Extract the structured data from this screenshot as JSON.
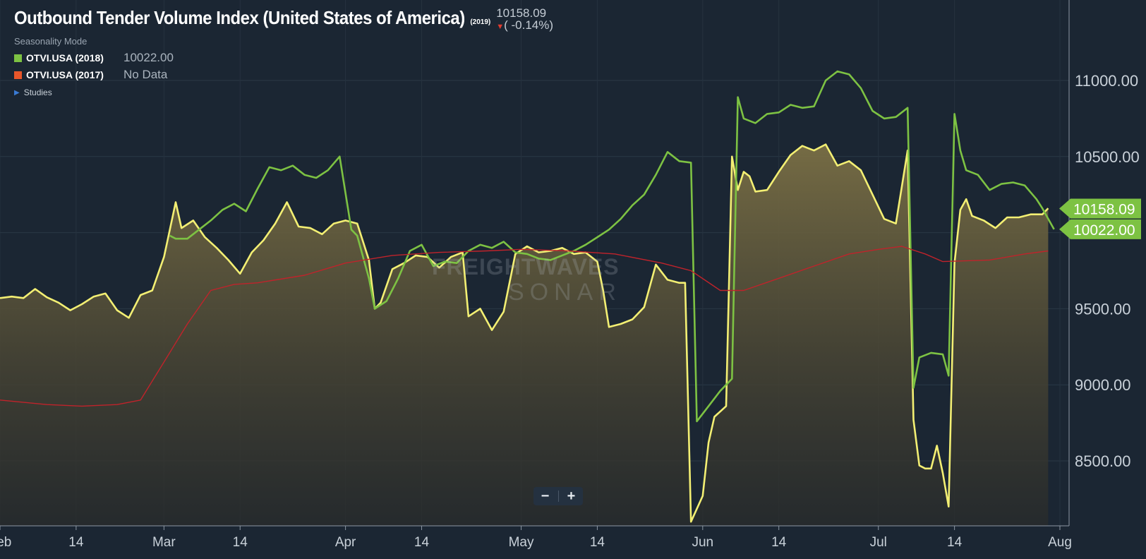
{
  "header": {
    "title": "Outbound Tender Volume Index (United States of America)",
    "year": "(2019)",
    "last_value": "10158.09",
    "last_change": "( -0.14%)",
    "seasonality_label": "Seasonality Mode",
    "studies_label": "Studies"
  },
  "legend": [
    {
      "name": "OTVI.USA (2018)",
      "value": "10022.00",
      "color": "#7dc243"
    },
    {
      "name": "OTVI.USA (2017)",
      "value": "No Data",
      "color": "#e8562a"
    }
  ],
  "watermark": {
    "line1": "FREIGHTWAVES",
    "line2": "SONAR"
  },
  "zoom": {
    "minus": "−",
    "plus": "+"
  },
  "colors": {
    "background": "#1b2633",
    "series_2019": "#f3ef73",
    "series_2018": "#7dc243",
    "moving_avg": "#c0232b",
    "price_tag": "#7dc243"
  },
  "chart_data": {
    "type": "line",
    "title": "Outbound Tender Volume Index (United States of America)",
    "x_tick_labels": [
      "Feb",
      "14",
      "Mar",
      "14",
      "Apr",
      "14",
      "May",
      "14",
      "Jun",
      "14",
      "Jul",
      "14",
      "Aug"
    ],
    "x_tick_dates": [
      "2019-02-01",
      "2019-02-14",
      "2019-03-01",
      "2019-03-14",
      "2019-04-01",
      "2019-04-14",
      "2019-05-01",
      "2019-05-14",
      "2019-06-01",
      "2019-06-14",
      "2019-07-01",
      "2019-07-14",
      "2019-08-01"
    ],
    "y_ticks": [
      8500,
      9000,
      9500,
      10000,
      10500,
      11000
    ],
    "y_tick_labels": [
      "8500.00",
      "9000.00",
      "9500.00",
      "",
      "10500.00",
      "11000.00"
    ],
    "ylim": [
      8050,
      11550
    ],
    "price_tags": [
      "10158.09",
      "10022.00"
    ],
    "grid": true,
    "series": [
      {
        "name": "OTVI.USA (2019)",
        "style": "line-area",
        "points": [
          [
            "2019-02-01",
            9570
          ],
          [
            "2019-02-03",
            9580
          ],
          [
            "2019-02-05",
            9570
          ],
          [
            "2019-02-07",
            9630
          ],
          [
            "2019-02-09",
            9575
          ],
          [
            "2019-02-11",
            9540
          ],
          [
            "2019-02-13",
            9490
          ],
          [
            "2019-02-15",
            9530
          ],
          [
            "2019-02-17",
            9580
          ],
          [
            "2019-02-19",
            9600
          ],
          [
            "2019-02-21",
            9490
          ],
          [
            "2019-02-23",
            9440
          ],
          [
            "2019-02-25",
            9590
          ],
          [
            "2019-02-27",
            9620
          ],
          [
            "2019-03-01",
            9840
          ],
          [
            "2019-03-02",
            10020
          ],
          [
            "2019-03-03",
            10200
          ],
          [
            "2019-03-04",
            10030
          ],
          [
            "2019-03-06",
            10080
          ],
          [
            "2019-03-08",
            9970
          ],
          [
            "2019-03-10",
            9900
          ],
          [
            "2019-03-12",
            9820
          ],
          [
            "2019-03-14",
            9730
          ],
          [
            "2019-03-16",
            9870
          ],
          [
            "2019-03-18",
            9950
          ],
          [
            "2019-03-20",
            10060
          ],
          [
            "2019-03-22",
            10200
          ],
          [
            "2019-03-24",
            10040
          ],
          [
            "2019-03-26",
            10030
          ],
          [
            "2019-03-28",
            9990
          ],
          [
            "2019-03-30",
            10060
          ],
          [
            "2019-04-01",
            10080
          ],
          [
            "2019-04-03",
            10060
          ],
          [
            "2019-04-05",
            9820
          ],
          [
            "2019-04-06",
            9500
          ],
          [
            "2019-04-07",
            9540
          ],
          [
            "2019-04-09",
            9760
          ],
          [
            "2019-04-11",
            9800
          ],
          [
            "2019-04-13",
            9850
          ],
          [
            "2019-04-15",
            9840
          ],
          [
            "2019-04-17",
            9770
          ],
          [
            "2019-04-19",
            9840
          ],
          [
            "2019-04-21",
            9870
          ],
          [
            "2019-04-22",
            9450
          ],
          [
            "2019-04-24",
            9500
          ],
          [
            "2019-04-26",
            9360
          ],
          [
            "2019-04-28",
            9480
          ],
          [
            "2019-04-30",
            9860
          ],
          [
            "2019-05-02",
            9910
          ],
          [
            "2019-05-04",
            9870
          ],
          [
            "2019-05-06",
            9880
          ],
          [
            "2019-05-08",
            9900
          ],
          [
            "2019-05-10",
            9860
          ],
          [
            "2019-05-12",
            9870
          ],
          [
            "2019-05-14",
            9810
          ],
          [
            "2019-05-15",
            9620
          ],
          [
            "2019-05-16",
            9380
          ],
          [
            "2019-05-18",
            9400
          ],
          [
            "2019-05-20",
            9430
          ],
          [
            "2019-05-22",
            9510
          ],
          [
            "2019-05-24",
            9790
          ],
          [
            "2019-05-26",
            9690
          ],
          [
            "2019-05-28",
            9670
          ],
          [
            "2019-05-29",
            9670
          ],
          [
            "2019-05-30",
            8100
          ],
          [
            "2019-06-01",
            8270
          ],
          [
            "2019-06-02",
            8620
          ],
          [
            "2019-06-03",
            8790
          ],
          [
            "2019-06-05",
            8860
          ],
          [
            "2019-06-06",
            10500
          ],
          [
            "2019-06-07",
            10280
          ],
          [
            "2019-06-08",
            10400
          ],
          [
            "2019-06-09",
            10370
          ],
          [
            "2019-06-10",
            10270
          ],
          [
            "2019-06-12",
            10280
          ],
          [
            "2019-06-14",
            10400
          ],
          [
            "2019-06-16",
            10510
          ],
          [
            "2019-06-18",
            10570
          ],
          [
            "2019-06-20",
            10540
          ],
          [
            "2019-06-22",
            10580
          ],
          [
            "2019-06-24",
            10440
          ],
          [
            "2019-06-26",
            10470
          ],
          [
            "2019-06-28",
            10410
          ],
          [
            "2019-06-30",
            10250
          ],
          [
            "2019-07-02",
            10090
          ],
          [
            "2019-07-04",
            10060
          ],
          [
            "2019-07-06",
            10540
          ],
          [
            "2019-07-07",
            8770
          ],
          [
            "2019-07-08",
            8470
          ],
          [
            "2019-07-09",
            8450
          ],
          [
            "2019-07-10",
            8450
          ],
          [
            "2019-07-11",
            8600
          ],
          [
            "2019-07-12",
            8420
          ],
          [
            "2019-07-13",
            8200
          ],
          [
            "2019-07-14",
            9800
          ],
          [
            "2019-07-15",
            10150
          ],
          [
            "2019-07-16",
            10220
          ],
          [
            "2019-07-17",
            10110
          ],
          [
            "2019-07-19",
            10080
          ],
          [
            "2019-07-21",
            10030
          ],
          [
            "2019-07-23",
            10100
          ],
          [
            "2019-07-25",
            10100
          ],
          [
            "2019-07-27",
            10120
          ],
          [
            "2019-07-29",
            10120
          ],
          [
            "2019-07-30",
            10160
          ]
        ]
      },
      {
        "name": "OTVI.USA (2018)",
        "style": "line",
        "points": [
          [
            "2019-03-02",
            9980
          ],
          [
            "2019-03-03",
            9960
          ],
          [
            "2019-03-05",
            9960
          ],
          [
            "2019-03-07",
            10020
          ],
          [
            "2019-03-09",
            10080
          ],
          [
            "2019-03-11",
            10150
          ],
          [
            "2019-03-13",
            10190
          ],
          [
            "2019-03-15",
            10140
          ],
          [
            "2019-03-17",
            10290
          ],
          [
            "2019-03-19",
            10430
          ],
          [
            "2019-03-21",
            10410
          ],
          [
            "2019-03-23",
            10440
          ],
          [
            "2019-03-25",
            10380
          ],
          [
            "2019-03-27",
            10360
          ],
          [
            "2019-03-29",
            10410
          ],
          [
            "2019-03-31",
            10500
          ],
          [
            "2019-04-02",
            10020
          ],
          [
            "2019-04-03",
            9980
          ],
          [
            "2019-04-05",
            9700
          ],
          [
            "2019-04-06",
            9500
          ],
          [
            "2019-04-08",
            9550
          ],
          [
            "2019-04-10",
            9700
          ],
          [
            "2019-04-12",
            9880
          ],
          [
            "2019-04-14",
            9920
          ],
          [
            "2019-04-16",
            9780
          ],
          [
            "2019-04-18",
            9810
          ],
          [
            "2019-04-20",
            9800
          ],
          [
            "2019-04-22",
            9880
          ],
          [
            "2019-04-24",
            9920
          ],
          [
            "2019-04-26",
            9900
          ],
          [
            "2019-04-28",
            9940
          ],
          [
            "2019-04-30",
            9870
          ],
          [
            "2019-05-02",
            9860
          ],
          [
            "2019-05-04",
            9830
          ],
          [
            "2019-05-06",
            9820
          ],
          [
            "2019-05-08",
            9850
          ],
          [
            "2019-05-10",
            9880
          ],
          [
            "2019-05-12",
            9920
          ],
          [
            "2019-05-14",
            9970
          ],
          [
            "2019-05-16",
            10020
          ],
          [
            "2019-05-18",
            10090
          ],
          [
            "2019-05-20",
            10180
          ],
          [
            "2019-05-22",
            10250
          ],
          [
            "2019-05-24",
            10380
          ],
          [
            "2019-05-26",
            10530
          ],
          [
            "2019-05-28",
            10470
          ],
          [
            "2019-05-30",
            10460
          ],
          [
            "2019-05-31",
            8760
          ],
          [
            "2019-06-02",
            8860
          ],
          [
            "2019-06-04",
            8960
          ],
          [
            "2019-06-06",
            9040
          ],
          [
            "2019-06-07",
            10890
          ],
          [
            "2019-06-08",
            10750
          ],
          [
            "2019-06-10",
            10720
          ],
          [
            "2019-06-12",
            10780
          ],
          [
            "2019-06-14",
            10790
          ],
          [
            "2019-06-16",
            10840
          ],
          [
            "2019-06-18",
            10820
          ],
          [
            "2019-06-20",
            10830
          ],
          [
            "2019-06-22",
            11000
          ],
          [
            "2019-06-24",
            11060
          ],
          [
            "2019-06-26",
            11040
          ],
          [
            "2019-06-28",
            10950
          ],
          [
            "2019-06-30",
            10800
          ],
          [
            "2019-07-02",
            10750
          ],
          [
            "2019-07-04",
            10760
          ],
          [
            "2019-07-06",
            10820
          ],
          [
            "2019-07-07",
            8980
          ],
          [
            "2019-07-08",
            9180
          ],
          [
            "2019-07-10",
            9210
          ],
          [
            "2019-07-12",
            9200
          ],
          [
            "2019-07-13",
            9060
          ],
          [
            "2019-07-14",
            10780
          ],
          [
            "2019-07-15",
            10540
          ],
          [
            "2019-07-16",
            10410
          ],
          [
            "2019-07-18",
            10380
          ],
          [
            "2019-07-20",
            10280
          ],
          [
            "2019-07-22",
            10320
          ],
          [
            "2019-07-24",
            10330
          ],
          [
            "2019-07-26",
            10310
          ],
          [
            "2019-07-28",
            10220
          ],
          [
            "2019-07-29",
            10160
          ],
          [
            "2019-07-31",
            10022
          ]
        ]
      },
      {
        "name": "",
        "style": "line-thin",
        "points": [
          [
            "2019-02-01",
            8900
          ],
          [
            "2019-02-09",
            8870
          ],
          [
            "2019-02-15",
            8860
          ],
          [
            "2019-02-21",
            8870
          ],
          [
            "2019-02-25",
            8900
          ],
          [
            "2019-03-01",
            9150
          ],
          [
            "2019-03-05",
            9400
          ],
          [
            "2019-03-09",
            9620
          ],
          [
            "2019-03-13",
            9660
          ],
          [
            "2019-03-17",
            9670
          ],
          [
            "2019-03-25",
            9720
          ],
          [
            "2019-04-01",
            9800
          ],
          [
            "2019-04-09",
            9850
          ],
          [
            "2019-04-17",
            9870
          ],
          [
            "2019-04-25",
            9880
          ],
          [
            "2019-05-01",
            9890
          ],
          [
            "2019-05-09",
            9880
          ],
          [
            "2019-05-17",
            9860
          ],
          [
            "2019-05-25",
            9800
          ],
          [
            "2019-05-30",
            9750
          ],
          [
            "2019-06-04",
            9620
          ],
          [
            "2019-06-08",
            9620
          ],
          [
            "2019-06-14",
            9700
          ],
          [
            "2019-06-20",
            9780
          ],
          [
            "2019-06-26",
            9860
          ],
          [
            "2019-07-01",
            9890
          ],
          [
            "2019-07-05",
            9910
          ],
          [
            "2019-07-09",
            9860
          ],
          [
            "2019-07-12",
            9810
          ],
          [
            "2019-07-20",
            9820
          ],
          [
            "2019-07-26",
            9860
          ],
          [
            "2019-07-30",
            9880
          ]
        ]
      }
    ]
  }
}
